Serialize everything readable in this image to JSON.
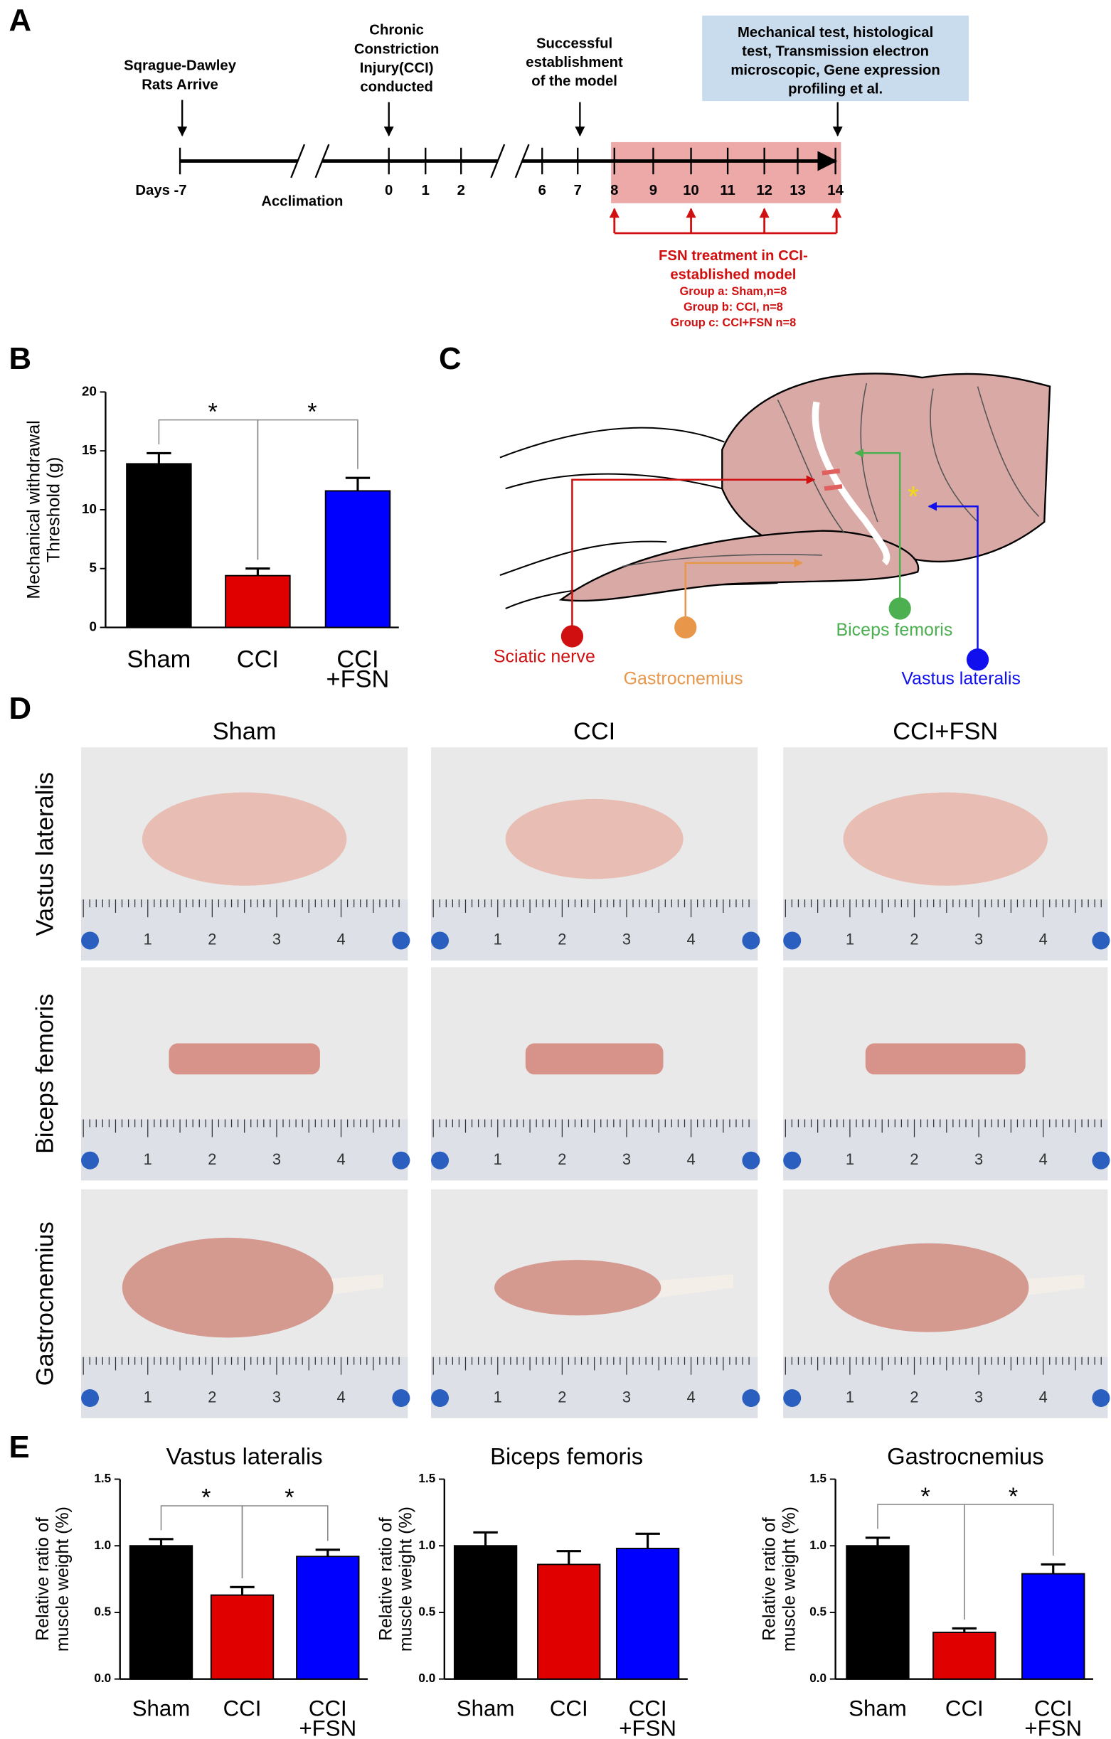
{
  "panel_labels": [
    "A",
    "B",
    "C",
    "D",
    "E"
  ],
  "timeline": {
    "events": [
      "Sqrague-Dawley\nRats Arrive",
      "Chronic\nConstriction\nInjury(CCI)\nconducted",
      "Successful\nestablishment\nof the model"
    ],
    "assays": "Mechanical test, histological\ntest, Transmission electron\nmicroscopic, Gene expression\nprofiling et al.",
    "days": [
      "Days -7",
      "0",
      "1",
      "2",
      "6",
      "7",
      "8",
      "9",
      "10",
      "11",
      "12",
      "13",
      "14"
    ],
    "period": "Acclimation",
    "treatment": "FSN treatment in CCI-\nestablished model",
    "groups": [
      "Group a: Sham,n=8",
      "Group b: CCI, n=8",
      "Group c: CCI+FSN n=8"
    ]
  },
  "anatomy": {
    "labels": [
      "Sciatic nerve",
      "Gastrocnemius",
      "Biceps femoris",
      "Vastus lateralis"
    ]
  },
  "photos": {
    "columns": [
      "Sham",
      "CCI",
      "CCI+FSN"
    ],
    "rows": [
      "Vastus lateralis",
      "Biceps femoris",
      "Gastrocnemius"
    ],
    "ruler": [
      "1",
      "2",
      "3",
      "4"
    ]
  },
  "chart_data": [
    {
      "type": "bar",
      "y_label": "Mechanical withdrawal\nThreshold (g)",
      "categories": [
        "Sham",
        "CCI",
        "CCI\n+FSN"
      ],
      "values": [
        13.9,
        4.4,
        11.6
      ],
      "errors": [
        0.9,
        0.6,
        1.1
      ],
      "colors": [
        "#000000",
        "#e00000",
        "#0000ff"
      ],
      "ylim": [
        0,
        20
      ],
      "yticks": [
        0,
        5,
        10,
        15,
        20
      ],
      "annotations": [
        "*",
        "*"
      ]
    },
    {
      "type": "bar",
      "title": "Vastus lateralis",
      "y_label": "Relative ratio of\nmuscle weight (%)",
      "categories": [
        "Sham",
        "CCI",
        "CCI\n+FSN"
      ],
      "values": [
        1.0,
        0.63,
        0.92
      ],
      "errors": [
        0.05,
        0.06,
        0.05
      ],
      "colors": [
        "#000000",
        "#e00000",
        "#0000ff"
      ],
      "ylim": [
        0,
        1.5
      ],
      "yticks": [
        {
          "value": 0,
          "label": "0.0"
        },
        0.5,
        {
          "value": 1,
          "label": "1.0"
        },
        1.5
      ],
      "annotations": [
        "*",
        "*"
      ]
    },
    {
      "type": "bar",
      "title": "Biceps femoris",
      "y_label": "Relative ratio of\nmuscle weight (%)",
      "categories": [
        "Sham",
        "CCI",
        "CCI\n+FSN"
      ],
      "values": [
        1.0,
        0.86,
        0.98
      ],
      "errors": [
        0.1,
        0.1,
        0.11
      ],
      "colors": [
        "#000000",
        "#e00000",
        "#0000ff"
      ],
      "ylim": [
        0,
        1.5
      ],
      "yticks": [
        {
          "value": 0,
          "label": "0.0"
        },
        0.5,
        {
          "value": 1,
          "label": "1.0"
        },
        1.5
      ]
    },
    {
      "type": "bar",
      "title": "Gastrocnemius",
      "y_label": "Relative ratio of\nmuscle weight (%)",
      "categories": [
        "Sham",
        "CCI",
        "CCI\n+FSN"
      ],
      "values": [
        1.0,
        0.35,
        0.79
      ],
      "errors": [
        0.06,
        0.03,
        0.07
      ],
      "colors": [
        "#000000",
        "#e00000",
        "#0000ff"
      ],
      "ylim": [
        0,
        1.5
      ],
      "yticks": [
        {
          "value": 0,
          "label": "0.0"
        },
        0.5,
        {
          "value": 1,
          "label": "1.0"
        },
        1.5
      ],
      "annotations": [
        "*",
        "*"
      ]
    }
  ]
}
